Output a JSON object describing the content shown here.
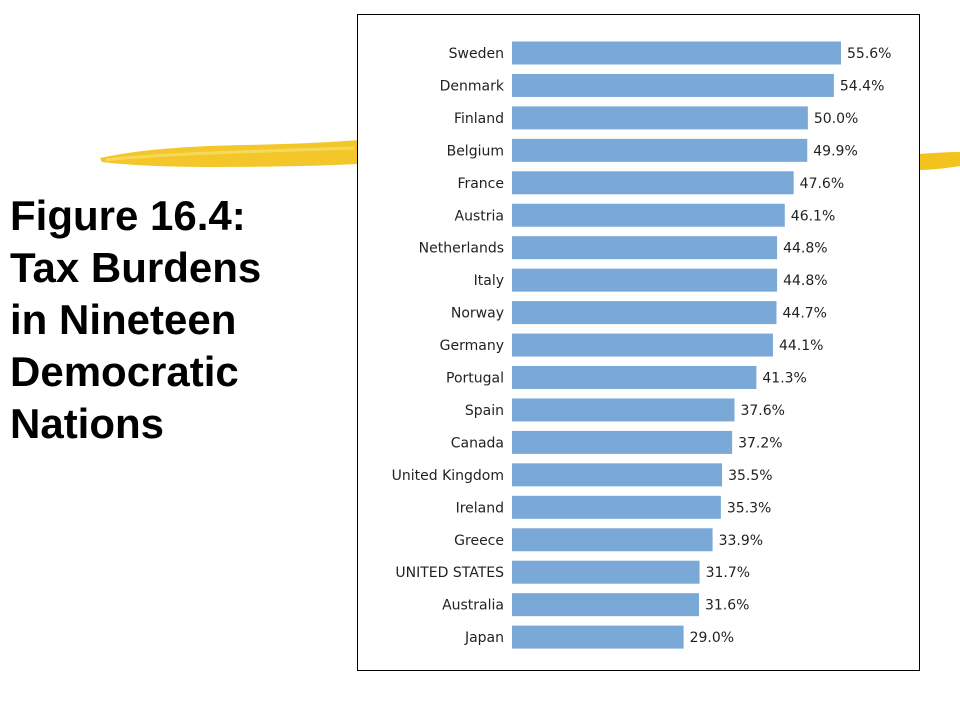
{
  "title_lines": [
    "Figure 16.4:",
    "Tax Burdens",
    "in Nineteen",
    "Democratic",
    "Nations"
  ],
  "colors": {
    "bar": "#7aa9d8",
    "highlighter": "#f2c31f",
    "text": "#231f20"
  },
  "chart_data": {
    "type": "bar",
    "orientation": "horizontal",
    "title": "",
    "xlabel": "",
    "ylabel": "",
    "categories": [
      "Sweden",
      "Denmark",
      "Finland",
      "Belgium",
      "France",
      "Austria",
      "Netherlands",
      "Italy",
      "Norway",
      "Germany",
      "Portugal",
      "Spain",
      "Canada",
      "United Kingdom",
      "Ireland",
      "Greece",
      "UNITED STATES",
      "Australia",
      "Japan"
    ],
    "values": [
      55.6,
      54.4,
      50.0,
      49.9,
      47.6,
      46.1,
      44.8,
      44.8,
      44.7,
      44.1,
      41.3,
      37.6,
      37.2,
      35.5,
      35.3,
      33.9,
      31.7,
      31.6,
      29.0
    ],
    "value_labels": [
      "55.6%",
      "54.4%",
      "50.0%",
      "49.9%",
      "47.6%",
      "46.1%",
      "44.8%",
      "44.8%",
      "44.7%",
      "44.1%",
      "41.3%",
      "37.6%",
      "37.2%",
      "35.5%",
      "35.3%",
      "33.9%",
      "31.7%",
      "31.6%",
      "29.0%"
    ],
    "xlim": [
      0,
      55.6
    ],
    "grid": false
  }
}
